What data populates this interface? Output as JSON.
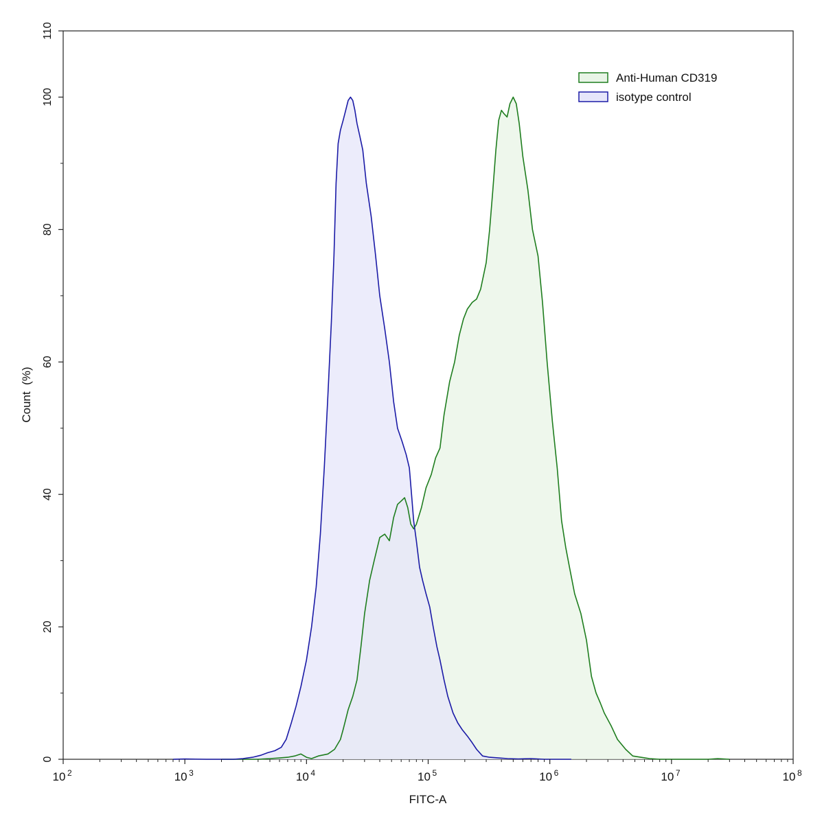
{
  "chart_data": {
    "type": "area",
    "xlabel": "FITC-A",
    "ylabel": "Count  (%)",
    "x_scale": "log",
    "xlim": [
      100,
      100000000
    ],
    "ylim": [
      0,
      110
    ],
    "x_ticks": [
      {
        "base": "10",
        "exp": "2",
        "value": 100
      },
      {
        "base": "10",
        "exp": "3",
        "value": 1000
      },
      {
        "base": "10",
        "exp": "4",
        "value": 10000
      },
      {
        "base": "10",
        "exp": "5",
        "value": 100000
      },
      {
        "base": "10",
        "exp": "6",
        "value": 1000000
      },
      {
        "base": "10",
        "exp": "7",
        "value": 10000000
      },
      {
        "base": "10",
        "exp": "8",
        "value": 100000000
      }
    ],
    "y_ticks": [
      "0",
      "20",
      "40",
      "60",
      "80",
      "100",
      "110"
    ],
    "legend_position": "top-right",
    "grid": false,
    "series": [
      {
        "name": "Anti-Human CD319",
        "stroke": "#1e7d1e",
        "fill": "#e8f4e6",
        "points": [
          [
            2000,
            0
          ],
          [
            4000,
            0
          ],
          [
            5000,
            0.1
          ],
          [
            6000,
            0.2
          ],
          [
            7000,
            0.3
          ],
          [
            8000,
            0.5
          ],
          [
            9000,
            0.8
          ],
          [
            10000,
            0.3
          ],
          [
            11000,
            0.1
          ],
          [
            12500,
            0.5
          ],
          [
            15000,
            0.8
          ],
          [
            17000,
            1.5
          ],
          [
            19000,
            3
          ],
          [
            20000,
            4.5
          ],
          [
            21000,
            6
          ],
          [
            22000,
            7.5
          ],
          [
            24000,
            9.5
          ],
          [
            26000,
            12
          ],
          [
            28000,
            17
          ],
          [
            30000,
            22
          ],
          [
            33000,
            27
          ],
          [
            36000,
            30
          ],
          [
            40000,
            33.5
          ],
          [
            44000,
            34
          ],
          [
            48000,
            33
          ],
          [
            52000,
            36.5
          ],
          [
            56000,
            38.5
          ],
          [
            60000,
            39
          ],
          [
            64000,
            39.5
          ],
          [
            68000,
            38
          ],
          [
            72000,
            35.5
          ],
          [
            76000,
            34.8
          ],
          [
            80000,
            35.5
          ],
          [
            88000,
            38
          ],
          [
            96000,
            41
          ],
          [
            106000,
            43
          ],
          [
            115000,
            45.5
          ],
          [
            125000,
            47
          ],
          [
            135000,
            52
          ],
          [
            150000,
            57
          ],
          [
            165000,
            60
          ],
          [
            180000,
            64
          ],
          [
            195000,
            66.5
          ],
          [
            210000,
            68
          ],
          [
            230000,
            69
          ],
          [
            250000,
            69.5
          ],
          [
            270000,
            71
          ],
          [
            300000,
            75
          ],
          [
            320000,
            80
          ],
          [
            340000,
            86
          ],
          [
            360000,
            92
          ],
          [
            380000,
            96.5
          ],
          [
            400000,
            98
          ],
          [
            420000,
            97.5
          ],
          [
            445000,
            97
          ],
          [
            470000,
            99
          ],
          [
            500000,
            100
          ],
          [
            530000,
            99
          ],
          [
            560000,
            96
          ],
          [
            600000,
            91
          ],
          [
            660000,
            86
          ],
          [
            720000,
            80
          ],
          [
            800000,
            76
          ],
          [
            870000,
            69
          ],
          [
            950000,
            60
          ],
          [
            1050000,
            51
          ],
          [
            1150000,
            44
          ],
          [
            1250000,
            36
          ],
          [
            1350000,
            32
          ],
          [
            1450000,
            29
          ],
          [
            1600000,
            25
          ],
          [
            1800000,
            22
          ],
          [
            2000000,
            18
          ],
          [
            2200000,
            12.5
          ],
          [
            2400000,
            10
          ],
          [
            2600000,
            8.5
          ],
          [
            2800000,
            7
          ],
          [
            3200000,
            5
          ],
          [
            3600000,
            3
          ],
          [
            4200000,
            1.5
          ],
          [
            4800000,
            0.5
          ],
          [
            5600000,
            0.3
          ],
          [
            6600000,
            0.1
          ],
          [
            8000000,
            0
          ],
          [
            12000000,
            0
          ],
          [
            20000000,
            0
          ],
          [
            24000000,
            0.1
          ],
          [
            30000000,
            0
          ]
        ]
      },
      {
        "name": "isotype control",
        "stroke": "#1a1aa6",
        "fill": "#e6e6fa",
        "points": [
          [
            800,
            0
          ],
          [
            1000,
            0.05
          ],
          [
            1500,
            0
          ],
          [
            2500,
            0
          ],
          [
            3000,
            0.1
          ],
          [
            3600,
            0.3
          ],
          [
            4200,
            0.6
          ],
          [
            4800,
            1
          ],
          [
            5500,
            1.3
          ],
          [
            6200,
            1.8
          ],
          [
            6800,
            3
          ],
          [
            7500,
            5.5
          ],
          [
            8200,
            8
          ],
          [
            9000,
            11
          ],
          [
            10000,
            15
          ],
          [
            11000,
            20
          ],
          [
            12000,
            26
          ],
          [
            13000,
            34
          ],
          [
            14000,
            44
          ],
          [
            15000,
            55
          ],
          [
            16000,
            66
          ],
          [
            16800,
            76
          ],
          [
            17500,
            87
          ],
          [
            18200,
            93
          ],
          [
            19000,
            95
          ],
          [
            20000,
            96.5
          ],
          [
            21000,
            98
          ],
          [
            22000,
            99.5
          ],
          [
            23000,
            100
          ],
          [
            24000,
            99.5
          ],
          [
            25000,
            98
          ],
          [
            26000,
            96
          ],
          [
            27500,
            94
          ],
          [
            29000,
            92
          ],
          [
            31000,
            87
          ],
          [
            34000,
            82
          ],
          [
            37000,
            76
          ],
          [
            40000,
            70
          ],
          [
            44000,
            65
          ],
          [
            48000,
            60
          ],
          [
            52000,
            54
          ],
          [
            56000,
            50
          ],
          [
            61000,
            48
          ],
          [
            66000,
            46
          ],
          [
            70000,
            44
          ],
          [
            73000,
            40
          ],
          [
            76000,
            36
          ],
          [
            80000,
            33
          ],
          [
            85000,
            29
          ],
          [
            90000,
            27
          ],
          [
            96000,
            25
          ],
          [
            103000,
            23
          ],
          [
            110000,
            20
          ],
          [
            118000,
            17
          ],
          [
            125000,
            15
          ],
          [
            135000,
            12
          ],
          [
            145000,
            9.5
          ],
          [
            160000,
            7
          ],
          [
            175000,
            5.5
          ],
          [
            190000,
            4.5
          ],
          [
            210000,
            3.5
          ],
          [
            230000,
            2.5
          ],
          [
            250000,
            1.5
          ],
          [
            280000,
            0.5
          ],
          [
            320000,
            0.3
          ],
          [
            380000,
            0.2
          ],
          [
            450000,
            0.1
          ],
          [
            550000,
            0.05
          ],
          [
            700000,
            0.1
          ],
          [
            900000,
            0
          ],
          [
            1500000,
            0
          ]
        ]
      }
    ]
  }
}
